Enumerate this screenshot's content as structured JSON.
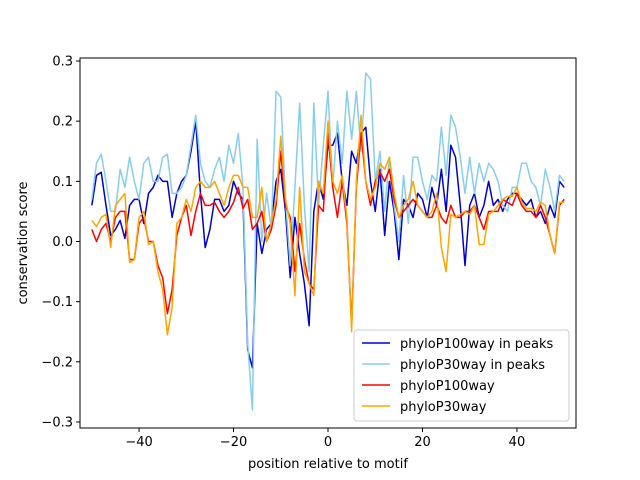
{
  "chart_data": {
    "type": "line",
    "title": "",
    "xlabel": "position relative to motif",
    "ylabel": "conservation score",
    "xlim": [
      -52.5,
      52.5
    ],
    "ylim": [
      -0.31,
      0.305
    ],
    "xticks": [
      -40,
      -20,
      0,
      20,
      40
    ],
    "yticks": [
      -0.3,
      -0.2,
      -0.1,
      0.0,
      0.1,
      0.2,
      0.3
    ],
    "ytick_labels": [
      "−0.3",
      "−0.2",
      "−0.1",
      "0.0",
      "0.1",
      "0.2",
      "0.3"
    ],
    "xtick_labels": [
      "−40",
      "−20",
      "0",
      "20",
      "40"
    ],
    "legend_position": "lower-right",
    "grid": false,
    "series": [
      {
        "name": "phyloP100way in peaks",
        "color": "#0000cd",
        "x": [
          -50,
          -49,
          -48,
          -47,
          -46,
          -45,
          -44,
          -43,
          -42,
          -41,
          -40,
          -39,
          -38,
          -37,
          -36,
          -35,
          -34,
          -33,
          -32,
          -31,
          -30,
          -29,
          -28,
          -27,
          -26,
          -25,
          -24,
          -23,
          -22,
          -21,
          -20,
          -19,
          -18,
          -17,
          -16,
          -15,
          -14,
          -13,
          -12,
          -11,
          -10,
          -9,
          -8,
          -7,
          -6,
          -5,
          -4,
          -3,
          -2,
          -1,
          0,
          1,
          2,
          3,
          4,
          5,
          6,
          7,
          8,
          9,
          10,
          11,
          12,
          13,
          14,
          15,
          16,
          17,
          18,
          19,
          20,
          21,
          22,
          23,
          24,
          25,
          26,
          27,
          28,
          29,
          30,
          31,
          32,
          33,
          34,
          35,
          36,
          37,
          38,
          39,
          40,
          41,
          42,
          43,
          44,
          45,
          46,
          47,
          48,
          49,
          50
        ],
        "values": [
          0.06,
          0.11,
          0.115,
          0.06,
          0.01,
          0.02,
          0.035,
          0.005,
          0.06,
          0.07,
          0.07,
          0.03,
          0.08,
          0.09,
          0.11,
          0.1,
          0.1,
          0.04,
          0.08,
          0.1,
          0.11,
          0.15,
          0.2,
          0.08,
          -0.01,
          0.02,
          0.07,
          0.07,
          0.05,
          0.06,
          0.1,
          0.08,
          0.07,
          -0.18,
          -0.21,
          0.03,
          -0.02,
          0.02,
          0.03,
          0.1,
          0.12,
          0.05,
          -0.06,
          0.04,
          -0.02,
          -0.07,
          -0.14,
          0.05,
          0.1,
          0.07,
          0.16,
          0.16,
          0.18,
          0.1,
          0.06,
          0.15,
          0.13,
          0.18,
          0.19,
          0.1,
          0.05,
          0.12,
          0.01,
          0.1,
          0.05,
          -0.03,
          0.07,
          0.06,
          0.04,
          0.08,
          0.07,
          0.04,
          0.09,
          0.06,
          0.12,
          0.05,
          0.16,
          0.14,
          0.06,
          -0.04,
          0.06,
          0.08,
          0.04,
          0.06,
          0.1,
          0.06,
          0.07,
          0.05,
          0.07,
          0.08,
          0.08,
          0.07,
          0.06,
          0.07,
          0.04,
          0.05,
          0.03,
          0.06,
          0.04,
          0.1,
          0.09
        ]
      },
      {
        "name": "phyloP30way in peaks",
        "color": "#87ceeb",
        "x": [
          -50,
          -49,
          -48,
          -47,
          -46,
          -45,
          -44,
          -43,
          -42,
          -41,
          -40,
          -39,
          -38,
          -37,
          -36,
          -35,
          -34,
          -33,
          -32,
          -31,
          -30,
          -29,
          -28,
          -27,
          -26,
          -25,
          -24,
          -23,
          -22,
          -21,
          -20,
          -19,
          -18,
          -17,
          -16,
          -15,
          -14,
          -13,
          -12,
          -11,
          -10,
          -9,
          -8,
          -7,
          -6,
          -5,
          -4,
          -3,
          -2,
          -1,
          0,
          1,
          2,
          3,
          4,
          5,
          6,
          7,
          8,
          9,
          10,
          11,
          12,
          13,
          14,
          15,
          16,
          17,
          18,
          19,
          20,
          21,
          22,
          23,
          24,
          25,
          26,
          27,
          28,
          29,
          30,
          31,
          32,
          33,
          34,
          35,
          36,
          37,
          38,
          39,
          40,
          41,
          42,
          43,
          44,
          45,
          46,
          47,
          48,
          49,
          50
        ],
        "values": [
          0.07,
          0.13,
          0.145,
          0.1,
          0.05,
          0.05,
          0.12,
          0.09,
          0.14,
          0.1,
          0.07,
          0.13,
          0.14,
          0.1,
          0.1,
          0.14,
          0.145,
          0.08,
          0.08,
          0.09,
          0.11,
          0.16,
          0.21,
          0.13,
          0.1,
          0.09,
          0.12,
          0.14,
          0.1,
          0.16,
          0.13,
          0.18,
          0.09,
          -0.17,
          -0.28,
          0.17,
          0.0,
          0.08,
          0.02,
          0.25,
          0.24,
          0.07,
          -0.04,
          0.09,
          0.23,
          0.06,
          -0.05,
          0.23,
          0.06,
          0.16,
          0.25,
          0.09,
          0.2,
          0.13,
          0.25,
          0.17,
          0.25,
          0.15,
          0.28,
          0.27,
          0.1,
          0.15,
          0.05,
          0.14,
          0.06,
          0.0,
          0.11,
          0.03,
          0.14,
          0.14,
          0.1,
          0.07,
          0.11,
          0.1,
          0.19,
          0.11,
          0.21,
          0.19,
          0.14,
          0.08,
          0.14,
          0.08,
          0.13,
          0.1,
          0.13,
          0.12,
          0.1,
          0.06,
          0.05,
          0.09,
          0.09,
          0.13,
          0.13,
          0.1,
          0.09,
          0.06,
          0.12,
          0.09,
          0.05,
          0.11,
          0.1
        ]
      },
      {
        "name": "phyloP100way",
        "color": "#ff0000",
        "x": [
          -50,
          -49,
          -48,
          -47,
          -46,
          -45,
          -44,
          -43,
          -42,
          -41,
          -40,
          -39,
          -38,
          -37,
          -36,
          -35,
          -34,
          -33,
          -32,
          -31,
          -30,
          -29,
          -28,
          -27,
          -26,
          -25,
          -24,
          -23,
          -22,
          -21,
          -20,
          -19,
          -18,
          -17,
          -16,
          -15,
          -14,
          -13,
          -12,
          -11,
          -10,
          -9,
          -8,
          -7,
          -6,
          -5,
          -4,
          -3,
          -2,
          -1,
          0,
          1,
          2,
          3,
          4,
          5,
          6,
          7,
          8,
          9,
          10,
          11,
          12,
          13,
          14,
          15,
          16,
          17,
          18,
          19,
          20,
          21,
          22,
          23,
          24,
          25,
          26,
          27,
          28,
          29,
          30,
          31,
          32,
          33,
          34,
          35,
          36,
          37,
          38,
          39,
          40,
          41,
          42,
          43,
          44,
          45,
          46,
          47,
          48,
          49,
          50
        ],
        "values": [
          0.02,
          0.0,
          0.02,
          0.03,
          0.0,
          0.04,
          0.05,
          0.05,
          -0.03,
          -0.03,
          0.03,
          0.04,
          0.0,
          0.0,
          -0.04,
          -0.06,
          -0.12,
          -0.08,
          0.01,
          0.04,
          0.06,
          0.01,
          0.05,
          0.08,
          0.06,
          0.06,
          0.065,
          0.05,
          0.04,
          0.05,
          0.065,
          0.09,
          0.055,
          0.07,
          0.02,
          0.03,
          0.05,
          0.0,
          0.02,
          0.06,
          0.15,
          0.06,
          0.04,
          -0.05,
          0.03,
          -0.03,
          -0.07,
          -0.08,
          0.06,
          0.05,
          0.18,
          0.09,
          0.04,
          0.1,
          0.03,
          -0.14,
          0.09,
          0.18,
          0.1,
          0.06,
          0.1,
          0.115,
          0.1,
          0.12,
          0.07,
          0.04,
          0.05,
          0.06,
          0.07,
          0.06,
          0.05,
          0.04,
          0.04,
          0.06,
          0.04,
          0.03,
          0.06,
          0.04,
          0.04,
          0.05,
          0.05,
          0.06,
          0.04,
          0.02,
          0.05,
          0.05,
          0.05,
          0.07,
          0.065,
          0.06,
          0.08,
          0.06,
          0.05,
          0.05,
          0.04,
          0.06,
          0.04,
          0.01,
          -0.02,
          0.06,
          0.07
        ]
      },
      {
        "name": "phyloP30way",
        "color": "#ffa500",
        "x": [
          -50,
          -49,
          -48,
          -47,
          -46,
          -45,
          -44,
          -43,
          -42,
          -41,
          -40,
          -39,
          -38,
          -37,
          -36,
          -35,
          -34,
          -33,
          -32,
          -31,
          -30,
          -29,
          -28,
          -27,
          -26,
          -25,
          -24,
          -23,
          -22,
          -21,
          -20,
          -19,
          -18,
          -17,
          -16,
          -15,
          -14,
          -13,
          -12,
          -11,
          -10,
          -9,
          -8,
          -7,
          -6,
          -5,
          -4,
          -3,
          -2,
          -1,
          0,
          1,
          2,
          3,
          4,
          5,
          6,
          7,
          8,
          9,
          10,
          11,
          12,
          13,
          14,
          15,
          16,
          17,
          18,
          19,
          20,
          21,
          22,
          23,
          24,
          25,
          26,
          27,
          28,
          29,
          30,
          31,
          32,
          33,
          34,
          35,
          36,
          37,
          38,
          39,
          40,
          41,
          42,
          43,
          44,
          45,
          46,
          47,
          48,
          49,
          50
        ],
        "values": [
          0.035,
          0.025,
          0.04,
          0.045,
          -0.01,
          0.06,
          0.07,
          0.08,
          -0.035,
          -0.03,
          0.04,
          0.05,
          -0.005,
          0.0,
          -0.05,
          -0.08,
          -0.155,
          -0.11,
          0.03,
          0.04,
          0.07,
          0.05,
          0.09,
          0.1,
          0.09,
          0.09,
          0.1,
          0.08,
          0.06,
          0.09,
          0.11,
          0.11,
          0.09,
          0.09,
          0.04,
          0.04,
          0.09,
          0.0,
          0.03,
          0.07,
          0.175,
          0.07,
          0.03,
          -0.09,
          0.09,
          -0.05,
          -0.07,
          -0.09,
          0.1,
          0.08,
          0.2,
          0.1,
          0.08,
          0.11,
          0.04,
          -0.15,
          0.1,
          0.21,
          0.1,
          0.07,
          0.09,
          0.13,
          0.12,
          0.14,
          0.08,
          0.04,
          0.06,
          0.07,
          0.1,
          0.06,
          0.05,
          0.04,
          0.05,
          0.08,
          -0.01,
          -0.05,
          0.045,
          0.04,
          0.045,
          0.05,
          0.045,
          0.06,
          -0.005,
          -0.005,
          0.045,
          0.05,
          0.06,
          0.07,
          0.075,
          0.075,
          0.09,
          0.065,
          0.055,
          0.055,
          0.05,
          0.065,
          0.06,
          0.01,
          -0.02,
          0.065,
          0.065
        ]
      }
    ]
  }
}
